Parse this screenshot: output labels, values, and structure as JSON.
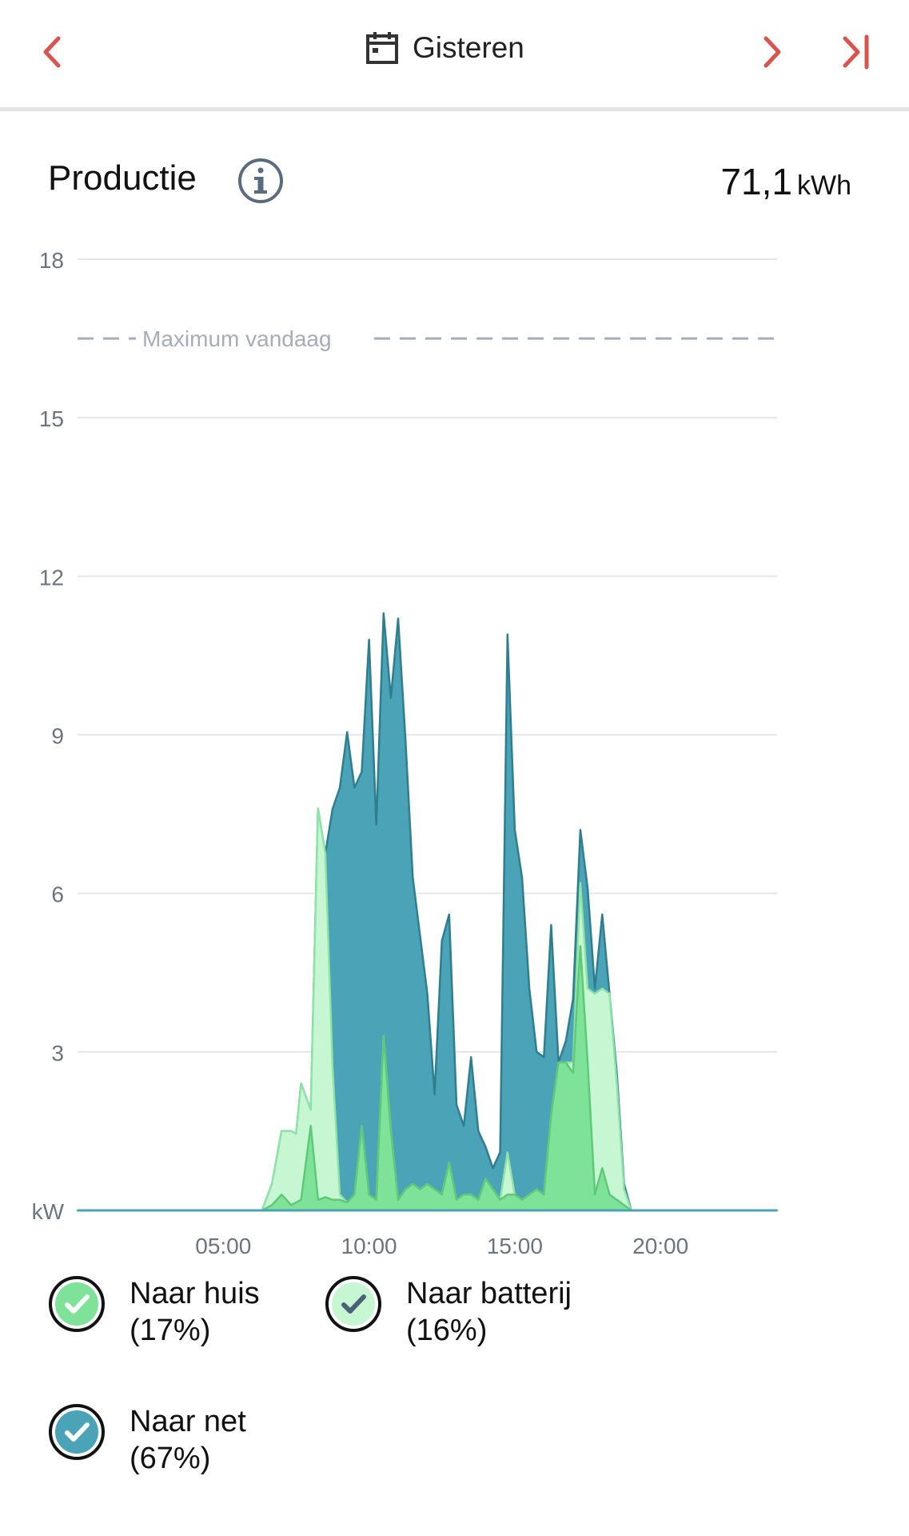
{
  "header": {
    "date_label": "Gisteren",
    "icons": [
      "chevron-left-icon",
      "calendar-icon",
      "chevron-right-icon",
      "skip-to-end-icon"
    ],
    "accent_color": "#d9534f"
  },
  "section": {
    "title": "Productie",
    "info_icon": "info-icon",
    "total_value": "71,1",
    "total_unit": "kWh"
  },
  "chart_data": {
    "type": "area",
    "stacked": true,
    "ylabel": "kW",
    "ylim": [
      0,
      18
    ],
    "y_ticks": [
      "18",
      "15",
      "12",
      "9",
      "6",
      "3"
    ],
    "x_range": [
      0,
      24
    ],
    "x_ticks": [
      {
        "x": 5,
        "label": "05:00"
      },
      {
        "x": 10,
        "label": "10:00"
      },
      {
        "x": 15,
        "label": "15:00"
      },
      {
        "x": 20,
        "label": "20:00"
      }
    ],
    "grid": true,
    "reference_line": {
      "label": "Maximum vandaag",
      "value": 16.5
    },
    "x": [
      0,
      6.33,
      6.67,
      7.0,
      7.33,
      7.5,
      7.67,
      8.0,
      8.25,
      8.5,
      8.75,
      9.0,
      9.25,
      9.5,
      9.75,
      10.0,
      10.25,
      10.5,
      10.75,
      11.0,
      11.25,
      11.5,
      11.75,
      12.0,
      12.25,
      12.5,
      12.75,
      13.0,
      13.25,
      13.5,
      13.75,
      14.0,
      14.25,
      14.5,
      14.75,
      15.0,
      15.25,
      15.5,
      15.75,
      16.0,
      16.25,
      16.5,
      16.75,
      17.0,
      17.25,
      17.5,
      17.75,
      18.0,
      18.25,
      18.5,
      18.75,
      19.0,
      19.25,
      19.5,
      19.75,
      20.0,
      20.25,
      20.5,
      20.75,
      21.0,
      21.25,
      24
    ],
    "series": [
      {
        "name": "Naar huis",
        "color": "#7ee398",
        "values": [
          0,
          0,
          0.1,
          0.3,
          0.1,
          0.15,
          0.2,
          1.6,
          0.2,
          0.25,
          0.2,
          0.2,
          0.15,
          0.3,
          1.6,
          0.3,
          0.2,
          3.3,
          1.5,
          0.2,
          0.4,
          0.5,
          0.4,
          0.5,
          0.4,
          0.3,
          0.9,
          0.2,
          0.3,
          0.3,
          0.2,
          0.6,
          0.4,
          0.2,
          0.3,
          0.3,
          0.2,
          0.3,
          0.4,
          0.3,
          1.8,
          2.8,
          2.8,
          2.6,
          5.0,
          2.8,
          0.3,
          0.8,
          0.3,
          0.2,
          0.1,
          0,
          0,
          0,
          0,
          0,
          0,
          0,
          0,
          0,
          0,
          0
        ]
      },
      {
        "name": "Naar batterij",
        "color": "#c6f7d2",
        "values": [
          0,
          0,
          0.4,
          1.2,
          1.4,
          1.3,
          2.2,
          0.3,
          7.4,
          6.5,
          2.5,
          0.1,
          0,
          0,
          0,
          0,
          0,
          0,
          0,
          0,
          0,
          0,
          0,
          0,
          0,
          0,
          0,
          0,
          0,
          0,
          0,
          0,
          0,
          0,
          0.8,
          0,
          0,
          0,
          0,
          0,
          0,
          0,
          0,
          0.2,
          1.2,
          1.4,
          3.8,
          3.4,
          3.8,
          2.2,
          0.3,
          0,
          0,
          0,
          0,
          0,
          0,
          0,
          0,
          0,
          0,
          0
        ]
      },
      {
        "name": "Naar net",
        "color": "#4aa3b6",
        "values": [
          0,
          0,
          0,
          0,
          0,
          0,
          0,
          0,
          0,
          0,
          4.9,
          7.7,
          8.9,
          7.7,
          6.7,
          10.5,
          7.1,
          8.0,
          8.2,
          11.0,
          8.5,
          5.8,
          4.8,
          3.6,
          1.8,
          4.8,
          4.7,
          1.8,
          1.3,
          2.6,
          1.3,
          0.6,
          0.4,
          0.9,
          9.8,
          6.9,
          6.1,
          3.9,
          2.6,
          2.6,
          3.6,
          0,
          0.4,
          1.2,
          1.0,
          1.9,
          0.1,
          1.4,
          0,
          0.2,
          0.1,
          0,
          0,
          0,
          0,
          0,
          0,
          0,
          0,
          0,
          0,
          0
        ]
      }
    ]
  },
  "legend": [
    {
      "label": "Naar huis",
      "pct": "(17%)",
      "color": "#7ee398",
      "check_color": "#ffffff"
    },
    {
      "label": "Naar batterij",
      "pct": "(16%)",
      "color": "#c6f7d2",
      "check_color": "#4a6278"
    },
    {
      "label": "Naar net",
      "pct": "(67%)",
      "color": "#4aa3b6",
      "check_color": "#ffffff"
    }
  ]
}
